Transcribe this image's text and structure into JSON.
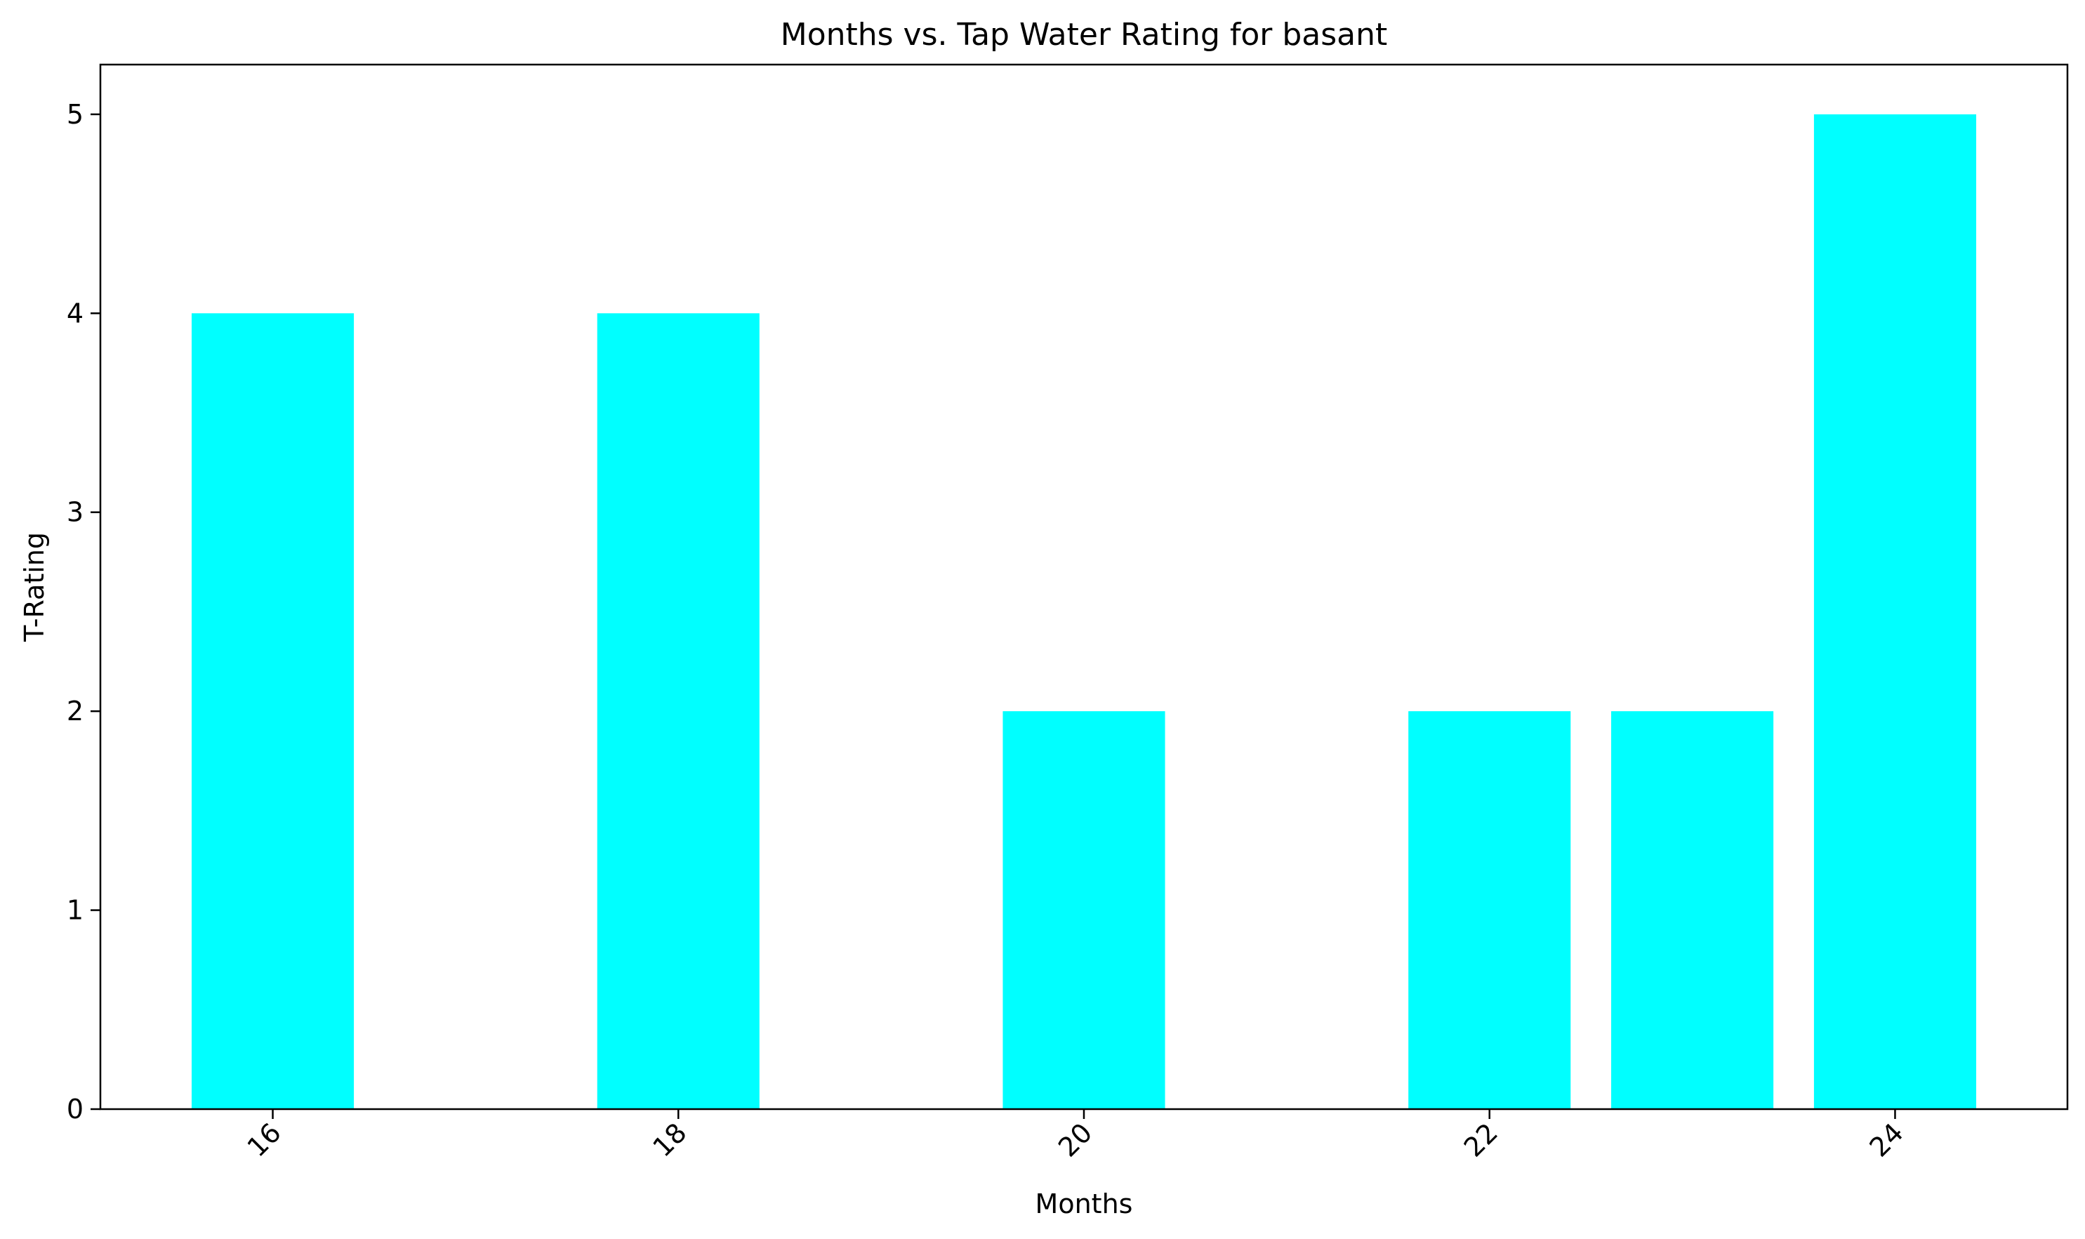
{
  "chart_data": {
    "type": "bar",
    "title": "Months vs. Tap Water Rating for basant",
    "xlabel": "Months",
    "ylabel": "T-Rating",
    "x": [
      16,
      18,
      20,
      22,
      23,
      24
    ],
    "values": [
      4,
      4,
      2,
      2,
      2,
      5
    ],
    "bar_width": 0.8,
    "xlim": [
      15.15,
      24.85
    ],
    "ylim": [
      0,
      5.25
    ],
    "xticks": [
      16,
      18,
      20,
      22,
      24
    ],
    "yticks": [
      0,
      1,
      2,
      3,
      4,
      5
    ],
    "x_tick_rotation": -45,
    "grid": false,
    "legend": false,
    "colors": {
      "bar": "#00ffff",
      "axes": "#000000",
      "background": "#ffffff"
    }
  }
}
